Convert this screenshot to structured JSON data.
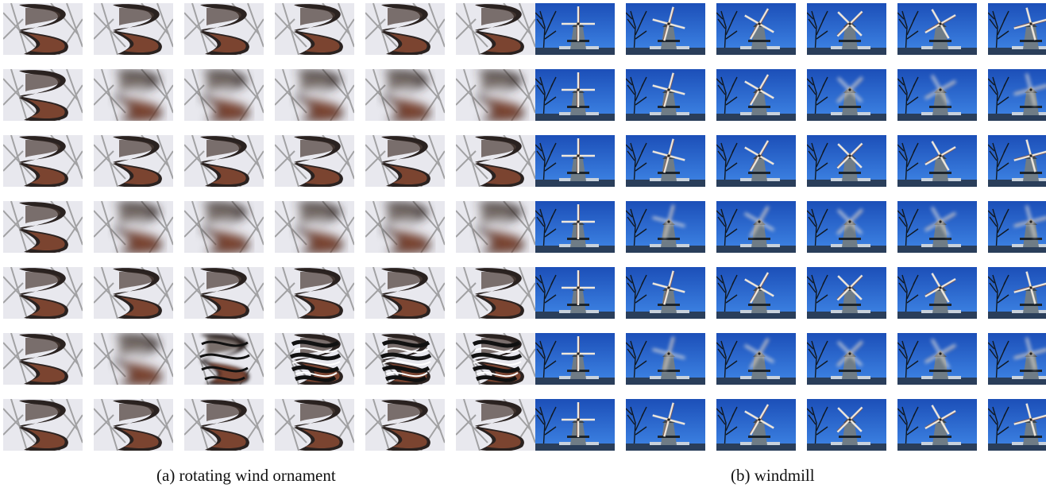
{
  "figure": {
    "panels": [
      {
        "id": "a",
        "caption": "(a) rotating wind ornament",
        "subject": "spiral-ornament",
        "rows": [
          [
            "clear",
            "clear",
            "clear",
            "clear",
            "clear",
            "clear"
          ],
          [
            "clear",
            "blur",
            "blur",
            "blur",
            "blur",
            "blur"
          ],
          [
            "clear",
            "clear",
            "clear",
            "clear",
            "clear",
            "clear"
          ],
          [
            "clear",
            "blur",
            "blur",
            "blur",
            "blur",
            "blur"
          ],
          [
            "clear",
            "clear",
            "clear",
            "clear",
            "clear",
            "clear"
          ],
          [
            "clear",
            "blur",
            "wavy",
            "artifact",
            "artifact",
            "artifact"
          ],
          [
            "clear",
            "clear",
            "clear",
            "clear",
            "clear",
            "clear"
          ]
        ]
      },
      {
        "id": "b",
        "caption": "(b) windmill",
        "subject": "windmill",
        "rows": [
          [
            "clear",
            "clear",
            "clear",
            "clear",
            "clear",
            "clear"
          ],
          [
            "clear",
            "clear",
            "clear",
            "blur",
            "blur",
            "blur"
          ],
          [
            "clear",
            "clear",
            "clear",
            "clear",
            "clear",
            "clear"
          ],
          [
            "clear",
            "blur",
            "blur",
            "blur",
            "blur",
            "blur"
          ],
          [
            "clear",
            "clear",
            "clear",
            "clear",
            "clear",
            "clear"
          ],
          [
            "clear",
            "blur",
            "blur",
            "blur",
            "blur",
            "blur"
          ],
          [
            "clear",
            "clear",
            "clear",
            "clear",
            "clear",
            "clear"
          ]
        ]
      }
    ]
  }
}
